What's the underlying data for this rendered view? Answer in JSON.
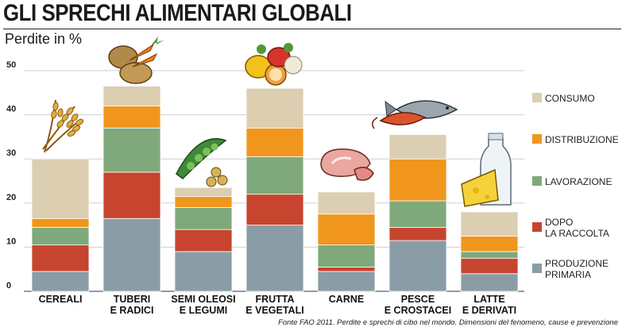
{
  "page": {
    "title": "GLI SPRECHI ALIMENTARI GLOBALI",
    "source": "Fonte FAO 2011. Perdite e sprechi di cibo nel mondo. Dimensioni del fenomeno, cause e prevenzione"
  },
  "chart_data": {
    "type": "bar",
    "stacked": true,
    "ylabel": "Perdite in %",
    "ylim": [
      0,
      50
    ],
    "yticks": [
      0,
      10,
      20,
      30,
      40,
      50
    ],
    "grid": true,
    "legend_position": "right",
    "categories": [
      [
        "CEREALI"
      ],
      [
        "TUBERI",
        "E RADICI"
      ],
      [
        "SEMI OLEOSI",
        "E LEGUMI"
      ],
      [
        "FRUTTA",
        "E VEGETALI"
      ],
      [
        "CARNE"
      ],
      [
        "PESCE",
        "E CROSTACEI"
      ],
      [
        "LATTE",
        "E DERIVATI"
      ]
    ],
    "series": [
      {
        "name": [
          "PRODUZIONE",
          "PRIMARIA"
        ],
        "color": "#8a9ca5",
        "values": [
          4.5,
          16.5,
          9,
          15,
          4.5,
          11.5,
          4
        ]
      },
      {
        "name": [
          "DOPO",
          "LA RACCOLTA"
        ],
        "color": "#c7452f",
        "values": [
          6,
          10.5,
          5,
          7,
          1,
          3,
          3.5
        ]
      },
      {
        "name": [
          "LAVORAZIONE"
        ],
        "color": "#7fa97a",
        "values": [
          4,
          10,
          5,
          8.5,
          5,
          6,
          1.5
        ]
      },
      {
        "name": [
          "DISTRIBUZIONE"
        ],
        "color": "#f0961d",
        "values": [
          2,
          5,
          2.5,
          6.5,
          7,
          9.5,
          3.5
        ]
      },
      {
        "name": [
          "CONSUMO"
        ],
        "color": "#dcceb0",
        "values": [
          13.5,
          4.5,
          2,
          9,
          5,
          5.5,
          5.5
        ]
      }
    ],
    "icons": [
      "wheat-icon",
      "potato-carrot-icon",
      "peapod-icon",
      "fruit-vegetable-icon",
      "meat-icon",
      "fish-shrimp-icon",
      "milk-cheese-icon"
    ]
  }
}
